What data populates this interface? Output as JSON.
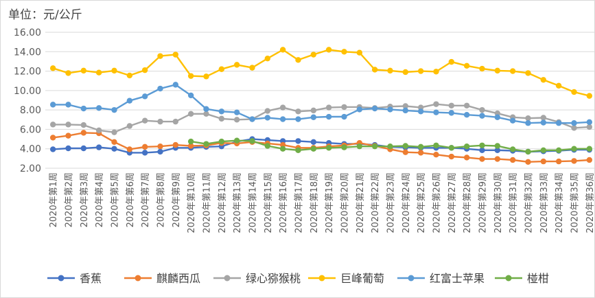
{
  "chart_data": {
    "type": "line",
    "title": "",
    "unit_label": "单位：元/公斤",
    "xlabel": "",
    "ylabel": "",
    "ylim": [
      2.0,
      16.0
    ],
    "yticks": [
      "2.00",
      "4.00",
      "6.00",
      "8.00",
      "10.00",
      "12.00",
      "14.00",
      "16.00"
    ],
    "yticks_values": [
      2,
      4,
      6,
      8,
      10,
      12,
      14,
      16
    ],
    "grid": "horizontal",
    "legend_position": "bottom",
    "categories": [
      "2020年第1周",
      "2020年第2周",
      "2020年第3周",
      "2020年第4周",
      "2020年第5周",
      "2020年第6周",
      "2020年第7周",
      "2020年第8周",
      "2020年第9周",
      "2020年第10周",
      "2020年第11周",
      "2020年第12周",
      "2020年第13周",
      "2020年第14周",
      "2020年第15周",
      "2020年第16周",
      "2020年第17周",
      "2020年第18周",
      "2020年第19周",
      "2020年第20周",
      "2020年第21周",
      "2020年第22周",
      "2020年第23周",
      "2020年第24周",
      "2020年第25周",
      "2020年第26周",
      "2020年第27周",
      "2020年第28周",
      "2020年第29周",
      "2020年第30周",
      "2020年第31周",
      "2020年第32周",
      "2020年第33周",
      "2020年第34周",
      "2020年第35周",
      "2020年第36周"
    ],
    "series": [
      {
        "name": "香蕉",
        "color": "#4472c4",
        "values": [
          3.95,
          4.05,
          4.05,
          4.15,
          4.0,
          3.6,
          3.6,
          3.7,
          4.1,
          4.1,
          4.2,
          4.25,
          4.75,
          5.0,
          4.9,
          4.8,
          4.8,
          4.7,
          4.6,
          4.5,
          4.5,
          4.4,
          4.2,
          4.15,
          4.1,
          4.1,
          4.1,
          4.0,
          3.85,
          3.85,
          3.8,
          3.7,
          3.75,
          3.8,
          3.9,
          3.9
        ]
      },
      {
        "name": "麒麟西瓜",
        "color": "#ed7d31",
        "values": [
          5.15,
          5.35,
          5.65,
          5.6,
          4.7,
          3.95,
          4.2,
          4.25,
          4.4,
          4.3,
          4.35,
          4.6,
          4.55,
          4.7,
          4.55,
          4.4,
          4.1,
          4.1,
          4.25,
          4.35,
          4.6,
          4.3,
          3.95,
          3.65,
          3.6,
          3.4,
          3.2,
          3.1,
          2.95,
          2.95,
          2.85,
          2.65,
          2.7,
          2.7,
          2.75,
          2.85
        ]
      },
      {
        "name": "绿心猕猴桃",
        "color": "#a5a5a5",
        "values": [
          6.5,
          6.5,
          6.45,
          5.9,
          5.7,
          6.35,
          6.9,
          6.8,
          6.8,
          7.6,
          7.6,
          7.1,
          7.0,
          7.05,
          7.9,
          8.25,
          7.85,
          7.95,
          8.25,
          8.3,
          8.3,
          8.2,
          8.35,
          8.4,
          8.25,
          8.6,
          8.45,
          8.45,
          8.0,
          7.65,
          7.25,
          7.15,
          7.2,
          6.75,
          6.15,
          6.25
        ]
      },
      {
        "name": "巨峰葡萄",
        "color": "#ffc000",
        "values": [
          12.3,
          11.8,
          12.05,
          11.85,
          12.05,
          11.55,
          12.1,
          13.55,
          13.7,
          11.5,
          11.45,
          12.2,
          12.65,
          12.35,
          13.3,
          14.2,
          13.15,
          13.7,
          14.2,
          14.0,
          13.9,
          12.15,
          12.05,
          11.9,
          12.0,
          11.95,
          12.95,
          12.55,
          12.25,
          12.05,
          12.0,
          11.8,
          11.1,
          10.5,
          9.85,
          9.45
        ]
      },
      {
        "name": "红富士苹果",
        "color": "#5b9bd5",
        "values": [
          8.55,
          8.55,
          8.15,
          8.2,
          8.0,
          8.95,
          9.4,
          10.2,
          10.6,
          9.5,
          8.1,
          7.85,
          7.75,
          7.05,
          7.2,
          7.05,
          7.05,
          7.25,
          7.3,
          7.3,
          8.05,
          8.15,
          8.05,
          7.95,
          7.85,
          7.75,
          7.7,
          7.5,
          7.4,
          7.25,
          6.9,
          6.65,
          6.7,
          6.65,
          6.65,
          6.75
        ]
      },
      {
        "name": "椪柑",
        "color": "#70ad47",
        "values": [
          null,
          null,
          null,
          null,
          null,
          null,
          null,
          null,
          null,
          4.75,
          4.5,
          4.75,
          4.85,
          4.8,
          4.3,
          4.0,
          3.85,
          4.0,
          4.1,
          4.15,
          4.25,
          4.25,
          4.25,
          4.3,
          4.2,
          4.35,
          4.1,
          4.25,
          4.35,
          4.3,
          3.95,
          3.7,
          3.85,
          3.85,
          4.0,
          4.0
        ]
      }
    ]
  }
}
